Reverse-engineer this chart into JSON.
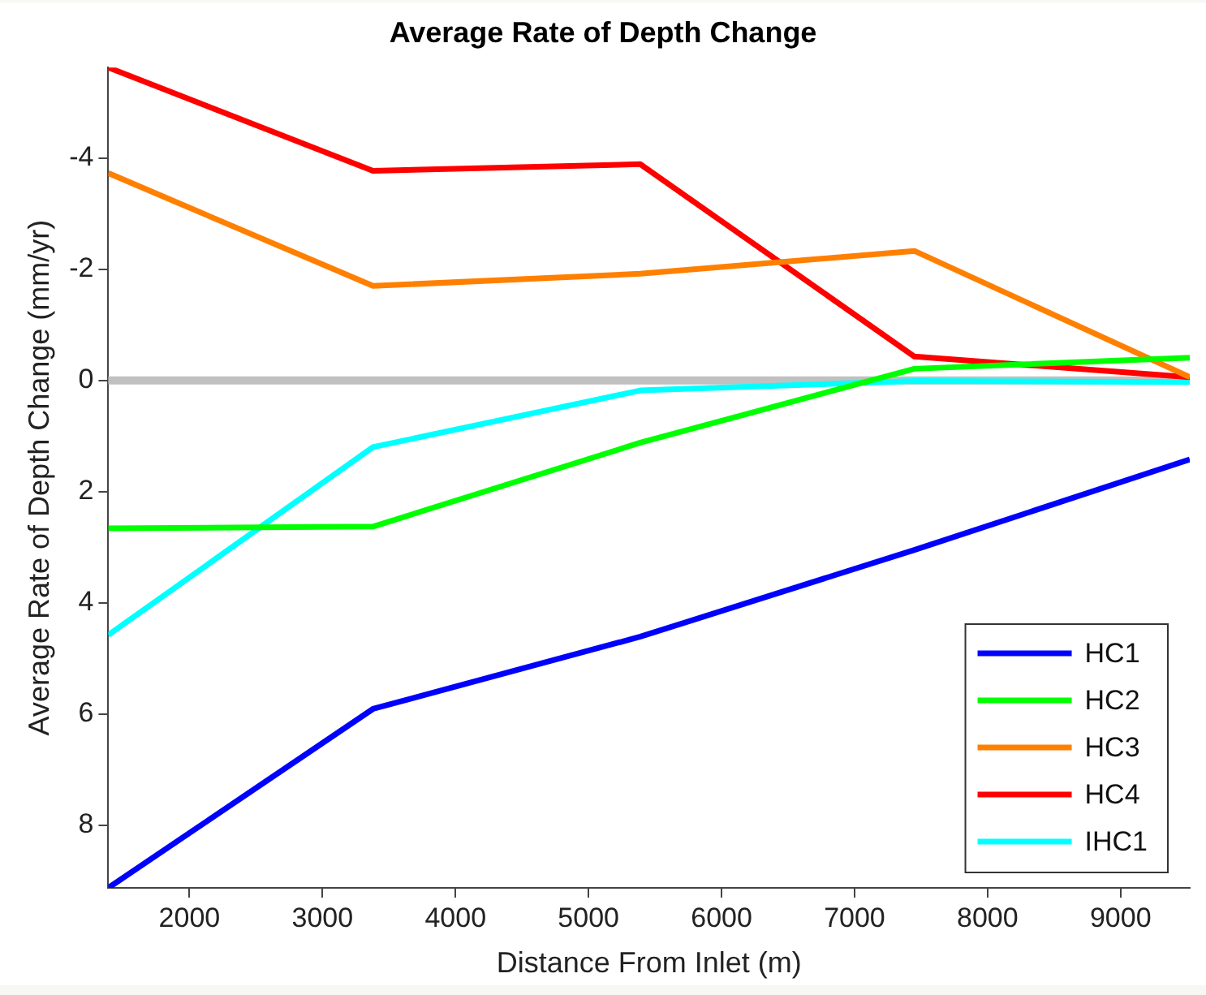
{
  "chart_data": {
    "type": "line",
    "title": "Average Rate of Depth Change",
    "xlabel": "Distance From Inlet (m)",
    "ylabel": "Average Rate of Depth Change (mm/yr)",
    "x": [
      1390,
      3380,
      5390,
      7450,
      9520
    ],
    "xlim": [
      1390,
      9520
    ],
    "xticks": [
      2000,
      3000,
      4000,
      5000,
      6000,
      7000,
      8000,
      9000
    ],
    "ylim": [
      9.13,
      -5.63
    ],
    "yticks": [
      -4,
      -2,
      0,
      2,
      4,
      6,
      8
    ],
    "series": [
      {
        "name": "HC1",
        "color": "#0000ff",
        "values": [
          9.13,
          5.91,
          4.61,
          3.05,
          1.42
        ]
      },
      {
        "name": "HC2",
        "color": "#00ff00",
        "values": [
          2.66,
          2.63,
          1.12,
          -0.21,
          -0.41
        ]
      },
      {
        "name": "HC3",
        "color": "#ff8000",
        "values": [
          -3.73,
          -1.7,
          -1.92,
          -2.33,
          -0.06
        ]
      },
      {
        "name": "HC4",
        "color": "#ff0000",
        "values": [
          -5.63,
          -3.77,
          -3.89,
          -0.43,
          -0.06
        ]
      },
      {
        "name": "IHC1",
        "color": "#00ffff",
        "values": [
          4.58,
          1.2,
          0.18,
          0.01,
          0.03
        ]
      }
    ],
    "ref_lines": [
      {
        "axis": "y",
        "value": 0,
        "color": "#c0c0c0"
      }
    ],
    "grid": false,
    "legend": "bottom right",
    "marker": "none",
    "line_style": "solid"
  }
}
